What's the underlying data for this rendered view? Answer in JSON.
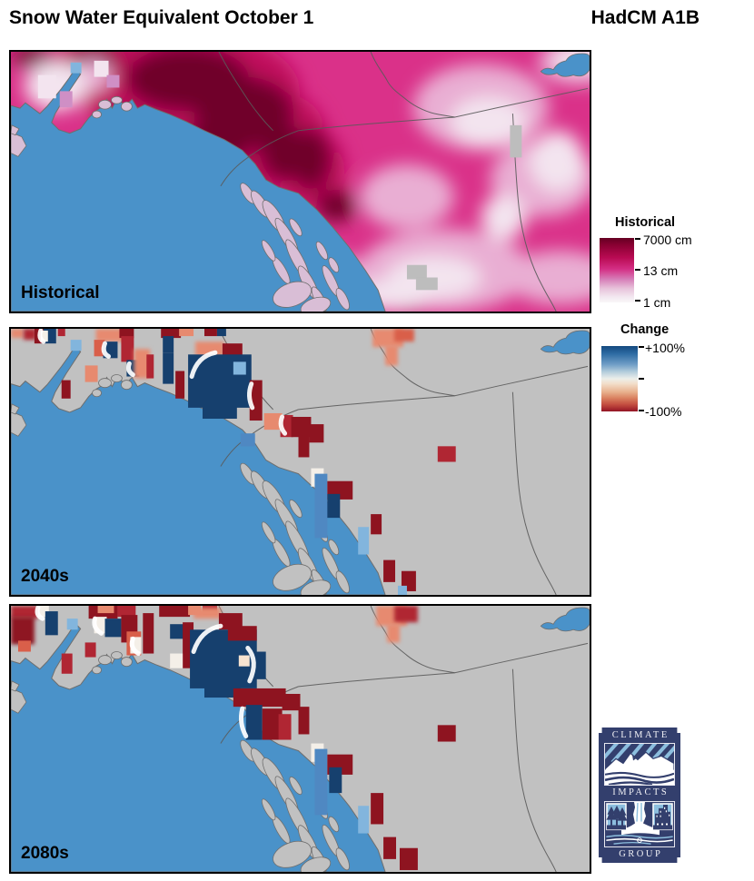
{
  "header": {
    "title": "Snow Water Equivalent October 1",
    "model": "HadCM A1B"
  },
  "palette": {
    "ocean": "#4a92c9",
    "land_gray": "#c1c1c1",
    "island_hist": "#d9bed6",
    "island_future": "#c1c1c1",
    "coast": "#6e6e6e",
    "border": "#5a5a5a",
    "navy": "#16406e",
    "maroonRed": "#8e1420",
    "crimson": "#b02633",
    "salmon": "#e78a6f",
    "salmonDark": "#d95f4a",
    "lightblue": "#82b5dd",
    "medblue": "#4f88c2",
    "offwhite": "#f4efe8",
    "cream": "#f6e3d0",
    "gray2": "#bdbdbd",
    "histBase": "#da3189",
    "histMaroon": "#70002a",
    "histCrimson": "#bf0d5c",
    "histLight": "#e9aed3",
    "histPale": "#f3e4ef",
    "histLav": "#cf8fc5"
  },
  "panels": [
    {
      "id": "historical",
      "label": "Historical",
      "type": "historical",
      "field": [
        [
          200,
          45,
          120,
          68,
          "histCrimson"
        ],
        [
          265,
          95,
          85,
          60,
          "histCrimson"
        ],
        [
          120,
          20,
          80,
          40,
          "histCrimson"
        ],
        [
          330,
          130,
          40,
          45,
          "histCrimson"
        ],
        [
          195,
          30,
          68,
          36,
          "histMaroon"
        ],
        [
          258,
          68,
          55,
          40,
          "histMaroon"
        ],
        [
          302,
          112,
          26,
          32,
          "histMaroon"
        ],
        [
          232,
          98,
          38,
          26,
          "histMaroon"
        ],
        [
          92,
          12,
          26,
          16,
          "histMaroon"
        ],
        [
          24,
          6,
          22,
          12,
          "histMaroon"
        ],
        [
          332,
          120,
          22,
          34,
          "histMaroon"
        ],
        [
          360,
          172,
          22,
          18,
          "histMaroon"
        ],
        [
          352,
          282,
          34,
          12,
          "histMaroon"
        ],
        [
          302,
          264,
          16,
          10,
          "histMaroon"
        ],
        [
          438,
          280,
          26,
          12,
          "histMaroon"
        ],
        [
          520,
          62,
          75,
          48,
          "histLight"
        ],
        [
          480,
          244,
          95,
          46,
          "histLight"
        ],
        [
          608,
          252,
          60,
          30,
          "histLight"
        ],
        [
          438,
          162,
          52,
          36,
          "histLight"
        ],
        [
          588,
          142,
          58,
          42,
          "histLight"
        ],
        [
          628,
          12,
          45,
          25,
          "histLight"
        ],
        [
          345,
          252,
          55,
          26,
          "histLight"
        ],
        [
          92,
          26,
          20,
          18,
          "histLight"
        ],
        [
          528,
          78,
          42,
          28,
          "histPale"
        ],
        [
          468,
          252,
          52,
          24,
          "histPale"
        ],
        [
          630,
          6,
          32,
          16,
          "histPale"
        ],
        [
          604,
          122,
          30,
          34,
          "histPale"
        ],
        [
          422,
          272,
          42,
          18,
          "histPale"
        ],
        [
          545,
          185,
          25,
          25,
          "histPale"
        ],
        [
          50,
          38,
          35,
          28,
          "histPale"
        ]
      ],
      "cells": [
        [
          66,
          12,
          12,
          12,
          "lightblue"
        ],
        [
          438,
          238,
          22,
          16,
          "gray2"
        ],
        [
          448,
          252,
          24,
          14,
          "gray2"
        ],
        [
          552,
          82,
          13,
          36,
          "gray2"
        ],
        [
          92,
          10,
          16,
          18,
          "histPale"
        ],
        [
          106,
          26,
          14,
          14,
          "histLav"
        ],
        [
          30,
          26,
          20,
          26,
          "histPale"
        ],
        [
          54,
          44,
          14,
          18,
          "histLav"
        ]
      ],
      "swirls": []
    },
    {
      "id": "2040s",
      "label": "2040s",
      "type": "change",
      "cells": [
        [
          0,
          0,
          14,
          10,
          "salmon",
          1
        ],
        [
          14,
          0,
          14,
          12,
          "crimson",
          1
        ],
        [
          26,
          0,
          12,
          16,
          "maroonRed"
        ],
        [
          36,
          0,
          14,
          16,
          "navy"
        ],
        [
          33,
          2,
          8,
          12,
          "offwhite"
        ],
        [
          52,
          0,
          8,
          8,
          "crimson"
        ],
        [
          66,
          12,
          12,
          12,
          "lightblue"
        ],
        [
          94,
          0,
          38,
          14,
          "salmon",
          1
        ],
        [
          92,
          12,
          12,
          18,
          "salmonDark"
        ],
        [
          102,
          14,
          16,
          18,
          "navy"
        ],
        [
          120,
          0,
          16,
          10,
          "maroonRed"
        ],
        [
          122,
          8,
          14,
          28,
          "crimson"
        ],
        [
          128,
          34,
          14,
          18,
          "navy"
        ],
        [
          136,
          22,
          18,
          32,
          "salmon",
          1
        ],
        [
          150,
          28,
          8,
          26,
          "crimson"
        ],
        [
          56,
          56,
          10,
          20,
          "maroonRed"
        ],
        [
          82,
          40,
          14,
          18,
          "salmon"
        ],
        [
          166,
          0,
          22,
          10,
          "maroonRed"
        ],
        [
          186,
          0,
          16,
          8,
          "salmon"
        ],
        [
          214,
          0,
          14,
          8,
          "maroonRed"
        ],
        [
          228,
          0,
          10,
          8,
          "navy"
        ],
        [
          168,
          8,
          12,
          18,
          "navy"
        ],
        [
          168,
          26,
          12,
          34,
          "navy"
        ],
        [
          182,
          46,
          10,
          30,
          "maroonRed"
        ],
        [
          204,
          14,
          32,
          16,
          "salmon",
          1
        ],
        [
          234,
          16,
          22,
          20,
          "maroonRed"
        ],
        [
          196,
          28,
          70,
          58,
          "navy"
        ],
        [
          212,
          80,
          38,
          18,
          "navy"
        ],
        [
          246,
          36,
          14,
          14,
          "lightblue"
        ],
        [
          264,
          56,
          14,
          44,
          "maroonRed"
        ],
        [
          280,
          92,
          20,
          18,
          "salmon"
        ],
        [
          298,
          94,
          14,
          24,
          "crimson"
        ],
        [
          310,
          96,
          22,
          22,
          "maroonRed"
        ],
        [
          330,
          104,
          16,
          20,
          "maroonRed"
        ],
        [
          254,
          114,
          16,
          14,
          "medblue"
        ],
        [
          318,
          106,
          12,
          34,
          "maroonRed"
        ],
        [
          332,
          152,
          14,
          20,
          "offwhite"
        ],
        [
          336,
          158,
          14,
          70,
          "medblue"
        ],
        [
          350,
          166,
          28,
          20,
          "maroonRed"
        ],
        [
          350,
          180,
          14,
          26,
          "navy"
        ],
        [
          384,
          216,
          12,
          30,
          "lightblue"
        ],
        [
          398,
          202,
          12,
          22,
          "maroonRed"
        ],
        [
          412,
          252,
          13,
          24,
          "maroonRed"
        ],
        [
          432,
          264,
          16,
          22,
          "maroonRed"
        ],
        [
          428,
          280,
          10,
          10,
          "lightblue"
        ],
        [
          472,
          128,
          20,
          17,
          "crimson"
        ],
        [
          400,
          0,
          34,
          20,
          "salmon",
          1
        ],
        [
          424,
          0,
          22,
          14,
          "salmonDark",
          1
        ],
        [
          414,
          18,
          14,
          22,
          "salmon",
          1
        ]
      ],
      "swirls": [
        "M200,52Q206,30 226,26",
        "M266,60Q261,73 267,86",
        "M104,16Q100,26 108,30",
        "M33,2Q30,10 36,14",
        "M300,96Q296,106 303,114",
        "M131,38Q128,46 135,50"
      ]
    },
    {
      "id": "2080s",
      "label": "2080s",
      "type": "change",
      "cells": [
        [
          0,
          0,
          30,
          14,
          "crimson",
          1
        ],
        [
          0,
          12,
          26,
          30,
          "maroonRed",
          1
        ],
        [
          8,
          38,
          14,
          12,
          "salmonDark"
        ],
        [
          30,
          0,
          12,
          12,
          "offwhite"
        ],
        [
          38,
          6,
          14,
          26,
          "navy"
        ],
        [
          62,
          14,
          12,
          12,
          "lightblue"
        ],
        [
          56,
          52,
          12,
          22,
          "crimson"
        ],
        [
          82,
          40,
          12,
          16,
          "crimson"
        ],
        [
          86,
          0,
          32,
          14,
          "maroonRed"
        ],
        [
          96,
          0,
          18,
          8,
          "salmon"
        ],
        [
          92,
          12,
          14,
          18,
          "offwhite"
        ],
        [
          104,
          14,
          18,
          20,
          "navy"
        ],
        [
          118,
          0,
          20,
          12,
          "crimson"
        ],
        [
          122,
          10,
          18,
          30,
          "maroonRed"
        ],
        [
          128,
          28,
          16,
          26,
          "salmonDark"
        ],
        [
          132,
          34,
          12,
          18,
          "offwhite"
        ],
        [
          146,
          8,
          12,
          44,
          "maroonRed"
        ],
        [
          164,
          0,
          34,
          12,
          "maroonRed"
        ],
        [
          196,
          0,
          14,
          10,
          "salmon"
        ],
        [
          212,
          0,
          16,
          10,
          "crimson"
        ],
        [
          176,
          20,
          16,
          16,
          "navy"
        ],
        [
          190,
          18,
          12,
          50,
          "maroonRed"
        ],
        [
          176,
          52,
          14,
          16,
          "offwhite"
        ],
        [
          202,
          2,
          30,
          12,
          "salmon",
          1
        ],
        [
          230,
          8,
          26,
          18,
          "maroonRed"
        ],
        [
          198,
          26,
          74,
          64,
          "navy"
        ],
        [
          214,
          84,
          40,
          16,
          "navy"
        ],
        [
          262,
          50,
          20,
          30,
          "navy"
        ],
        [
          240,
          22,
          32,
          16,
          "maroonRed"
        ],
        [
          252,
          54,
          12,
          12,
          "cream"
        ],
        [
          246,
          90,
          58,
          20,
          "maroonRed"
        ],
        [
          300,
          96,
          20,
          18,
          "maroonRed"
        ],
        [
          260,
          108,
          18,
          38,
          "navy"
        ],
        [
          278,
          112,
          22,
          34,
          "maroonRed"
        ],
        [
          296,
          118,
          14,
          28,
          "crimson"
        ],
        [
          318,
          110,
          12,
          30,
          "maroonRed"
        ],
        [
          332,
          150,
          14,
          20,
          "offwhite"
        ],
        [
          336,
          156,
          14,
          72,
          "medblue"
        ],
        [
          350,
          162,
          28,
          22,
          "maroonRed"
        ],
        [
          352,
          176,
          14,
          28,
          "navy"
        ],
        [
          384,
          218,
          12,
          30,
          "lightblue"
        ],
        [
          398,
          204,
          14,
          34,
          "maroonRed"
        ],
        [
          412,
          252,
          14,
          24,
          "maroonRed"
        ],
        [
          430,
          264,
          20,
          24,
          "maroonRed"
        ],
        [
          472,
          130,
          20,
          18,
          "maroonRed"
        ],
        [
          404,
          0,
          34,
          22,
          "salmon",
          1
        ],
        [
          424,
          0,
          26,
          18,
          "crimson",
          1
        ],
        [
          416,
          20,
          14,
          20,
          "salmon",
          1
        ]
      ],
      "swirls": [
        "M202,50Q210,26 232,22",
        "M262,46Q274,60 264,82",
        "M256,112Q252,128 260,142",
        "M93,14Q90,24 100,30",
        "M135,36Q131,46 141,52",
        "M30,2Q27,10 35,14"
      ]
    }
  ],
  "legends": {
    "historical": {
      "title": "Historical",
      "ticks": [
        "7000 cm",
        "13 cm",
        "1 cm"
      ]
    },
    "change": {
      "title": "Change",
      "ticks": [
        "+100%",
        "-100%"
      ]
    }
  },
  "logo": {
    "words": [
      "CLIMATE",
      "IMPACTS",
      "GROUP"
    ]
  }
}
